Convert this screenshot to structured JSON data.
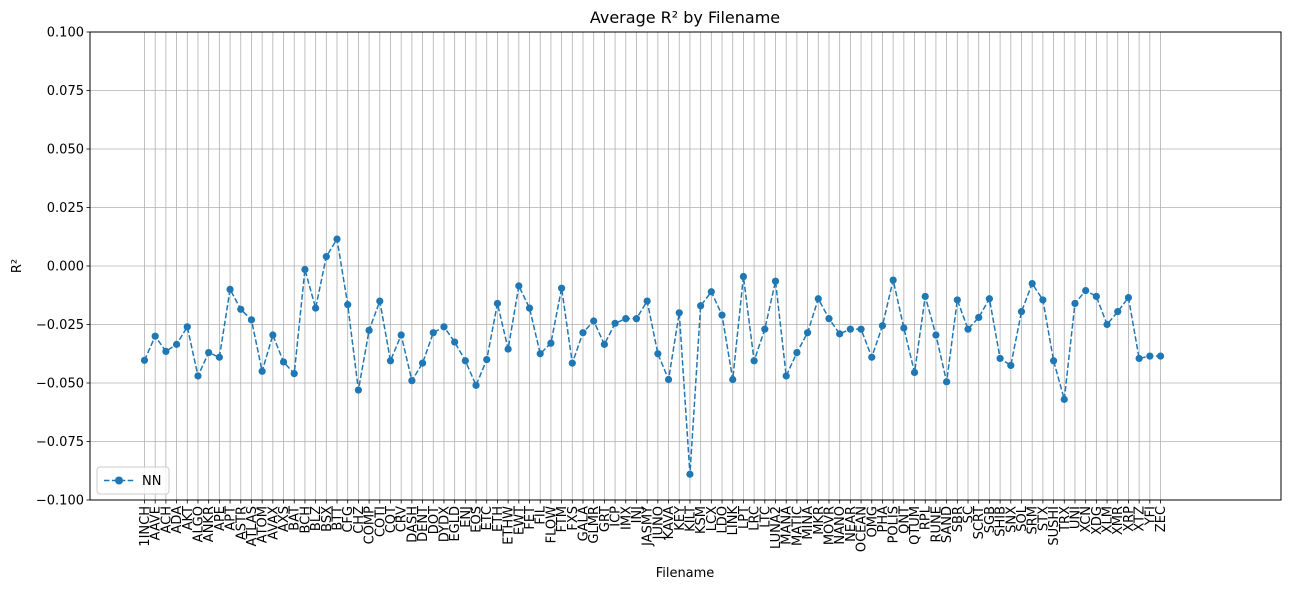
{
  "chart_data": {
    "type": "line",
    "title": "Average R² by Filename",
    "xlabel": "Filename",
    "ylabel": "R²",
    "ylim": [
      -0.1,
      0.1
    ],
    "yticks": [
      -0.1,
      -0.075,
      -0.05,
      -0.025,
      0.0,
      0.025,
      0.05,
      0.075,
      0.1
    ],
    "ytick_labels": [
      "−0.100",
      "−0.075",
      "−0.050",
      "−0.025",
      "0.000",
      "0.025",
      "0.050",
      "0.075",
      "0.100"
    ],
    "grid": true,
    "legend_position": "lower-left",
    "line_style": "dashed",
    "marker": "circle",
    "categories": [
      "1INCH",
      "AAVE",
      "ACH",
      "ADA",
      "AKT",
      "ALGO",
      "ANKR",
      "APE",
      "APT",
      "ASTR",
      "ATLAS",
      "ATOM",
      "AVAX",
      "AXS",
      "BAT",
      "BCH",
      "BLZ",
      "BSX",
      "BTT",
      "CFG",
      "CHZ",
      "COMP",
      "COTI",
      "CQT",
      "CRV",
      "DASH",
      "DENT",
      "DOT",
      "DYDX",
      "EGLD",
      "ENJ",
      "EOS",
      "ETC",
      "ETH",
      "ETHW",
      "EWT",
      "FET",
      "FIL",
      "FLOW",
      "FTM",
      "FXS",
      "GALA",
      "GLMR",
      "GRT",
      "ICP",
      "IMX",
      "INJ",
      "JASMY",
      "JUNO",
      "KAVA",
      "KEY",
      "KILT",
      "KSM",
      "LCX",
      "LDO",
      "LINK",
      "LPT",
      "LRC",
      "LTC",
      "LUNA2",
      "MANA",
      "MATIC",
      "MINA",
      "MKR",
      "MOVR",
      "NANO",
      "NEAR",
      "OCEAN",
      "OMG",
      "PHA",
      "POLIS",
      "QNT",
      "QTUM",
      "RPL",
      "RUNE",
      "SAND",
      "SBR",
      "SC",
      "SCRT",
      "SGB",
      "SHIB",
      "SNX",
      "SOL",
      "SRM",
      "STX",
      "SUSHI",
      "TRX",
      "UNI",
      "XCN",
      "XDG",
      "XLM",
      "XMR",
      "XRP",
      "XTZ",
      "YFI",
      "ZEC"
    ],
    "series": [
      {
        "name": "NN",
        "color": "#1f77b4",
        "values": [
          -0.0403,
          -0.03,
          -0.0365,
          -0.0335,
          -0.026,
          -0.047,
          -0.037,
          -0.039,
          -0.01,
          -0.0185,
          -0.023,
          -0.045,
          -0.0295,
          -0.041,
          -0.046,
          -0.0015,
          -0.018,
          0.004,
          0.0115,
          -0.0165,
          -0.053,
          -0.0275,
          -0.015,
          -0.0405,
          -0.0295,
          -0.049,
          -0.0415,
          -0.0285,
          -0.026,
          -0.0325,
          -0.0405,
          -0.051,
          -0.04,
          -0.016,
          -0.0355,
          -0.0085,
          -0.018,
          -0.0375,
          -0.033,
          -0.0095,
          -0.0415,
          -0.0285,
          -0.0235,
          -0.0335,
          -0.0245,
          -0.0225,
          -0.0225,
          -0.015,
          -0.0375,
          -0.0485,
          -0.02,
          -0.089,
          -0.017,
          -0.011,
          -0.021,
          -0.0485,
          -0.0045,
          -0.0405,
          -0.027,
          -0.0065,
          -0.047,
          -0.037,
          -0.0285,
          -0.014,
          -0.0225,
          -0.029,
          -0.027,
          -0.027,
          -0.039,
          -0.0255,
          -0.006,
          -0.0265,
          -0.0455,
          -0.013,
          -0.0295,
          -0.0495,
          -0.0145,
          -0.027,
          -0.022,
          -0.014,
          -0.0395,
          -0.0425,
          -0.0195,
          -0.0075,
          -0.0145,
          -0.0405,
          -0.057,
          -0.016,
          -0.0105,
          -0.013,
          -0.025,
          -0.0195,
          -0.0135,
          -0.0395,
          -0.0385,
          -0.0385
        ]
      }
    ]
  }
}
